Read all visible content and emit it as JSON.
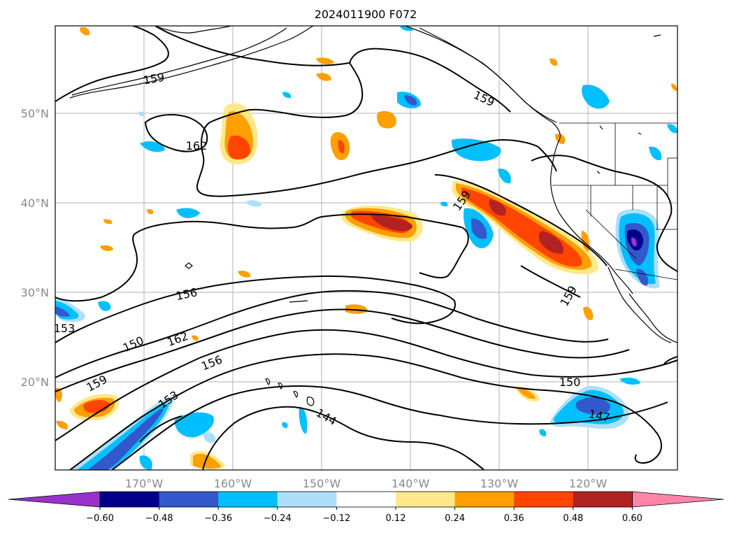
{
  "title": "2024011900 F072",
  "map": {
    "lat_labels": [
      "50°N",
      "40°N",
      "30°N",
      "20°N"
    ],
    "lon_labels": [
      "170°W",
      "160°W",
      "150°W",
      "140°W",
      "130°W",
      "120°W"
    ],
    "contour_labels": [
      "159",
      "162",
      "159",
      "159",
      "156",
      "153",
      "150",
      "162",
      "159",
      "156",
      "153",
      "144",
      "159",
      "150",
      "147"
    ]
  },
  "colorbar": {
    "colors": [
      "#9932CC",
      "#00008B",
      "#3358CC",
      "#00BFFF",
      "#ADDFF8",
      "#FFFFFF",
      "#FFE88A",
      "#FF9F00",
      "#FF4500",
      "#B22222",
      "#FF85A8"
    ],
    "tick_labels": [
      "−0.60",
      "−0.48",
      "−0.36",
      "−0.24",
      "−0.12",
      "0.12",
      "0.24",
      "0.36",
      "0.48",
      "0.60"
    ]
  }
}
